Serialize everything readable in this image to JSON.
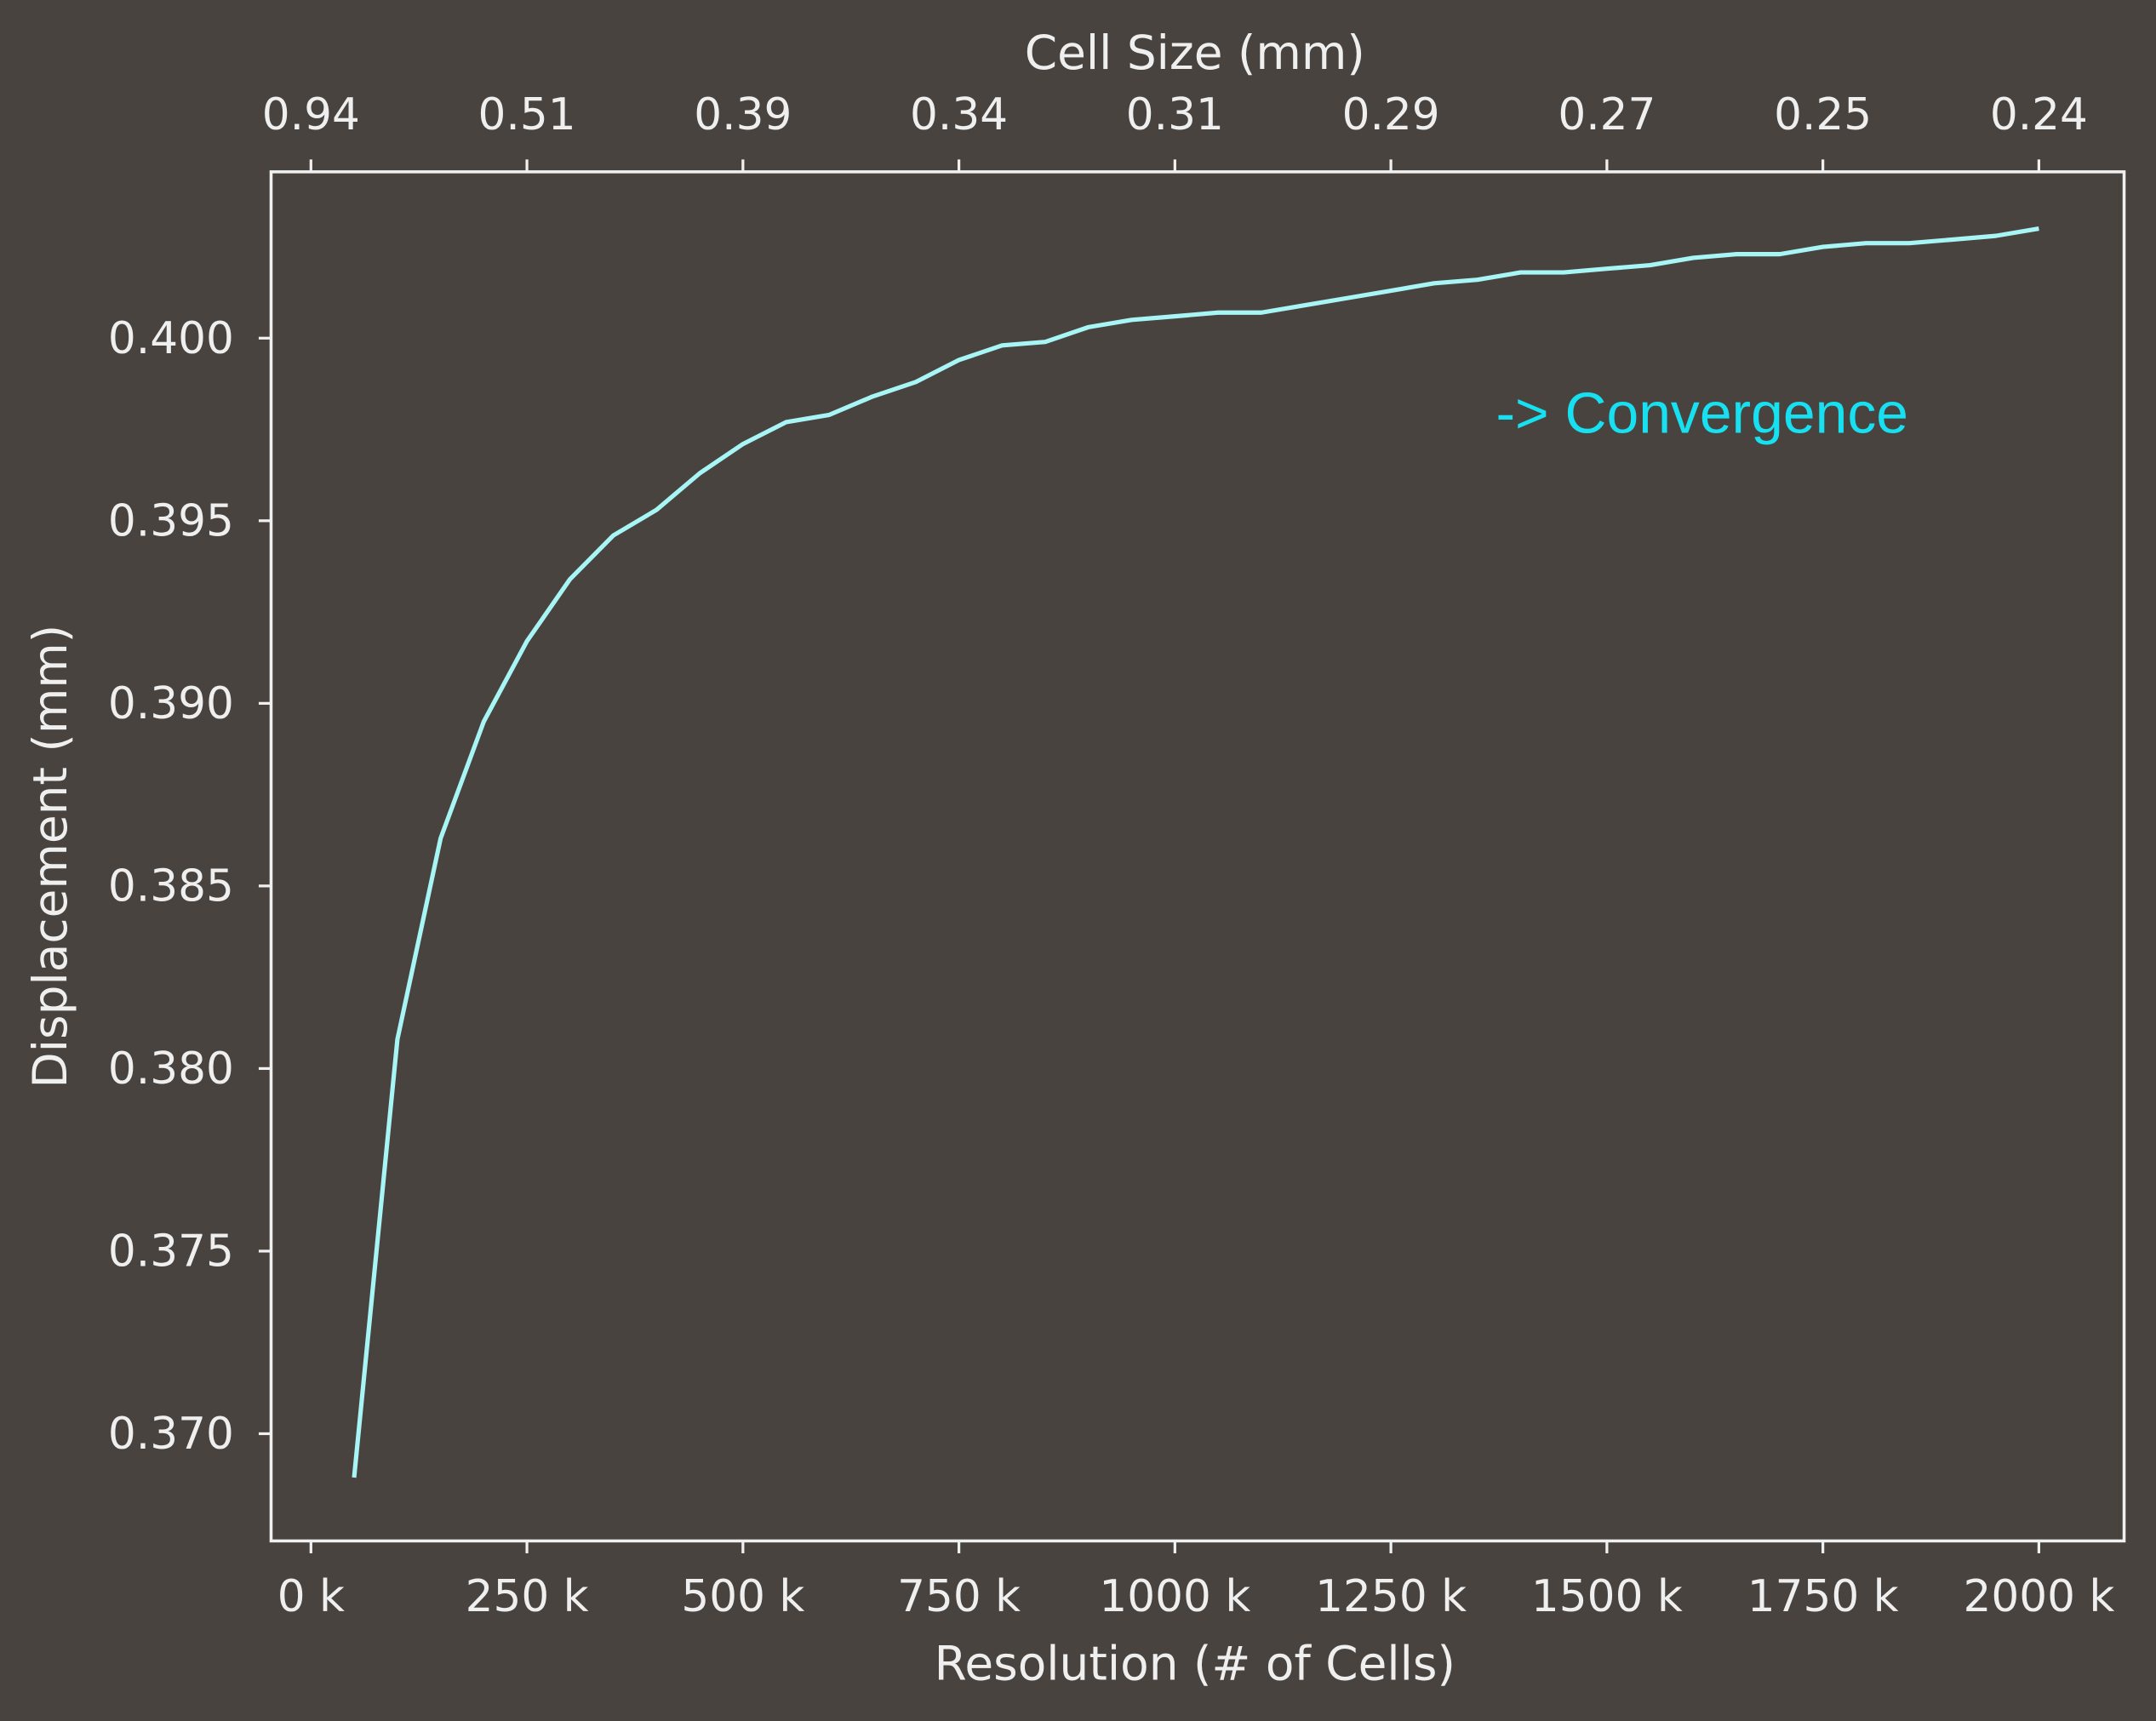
{
  "chart_data": {
    "type": "line",
    "title": "",
    "xlabel": "Resolution (# of Cells)",
    "ylabel": "Displacement (mm)",
    "top_xlabel": "Cell Size (mm)",
    "xlim": [
      -15,
      2100
    ],
    "ylim": [
      0.3676,
      0.4045
    ],
    "grid": false,
    "legend": null,
    "x_ticks": [
      0,
      250,
      500,
      750,
      1000,
      1250,
      1500,
      1750,
      2000
    ],
    "x_tick_labels": [
      "0 k",
      "250 k",
      "500 k",
      "750 k",
      "1000 k",
      "1250 k",
      "1500 k",
      "1750 k",
      "2000 k"
    ],
    "top_x_tick_labels": [
      "0.94",
      "0.51",
      "0.39",
      "0.34",
      "0.31",
      "0.29",
      "0.27",
      "0.25",
      "0.24"
    ],
    "y_ticks": [
      0.37,
      0.375,
      0.38,
      0.385,
      0.39,
      0.395,
      0.4
    ],
    "y_tick_labels": [
      "0.370",
      "0.375",
      "0.380",
      "0.385",
      "0.390",
      "0.395",
      "0.400"
    ],
    "annotation": "-> Convergence",
    "series": [
      {
        "name": "Displacement",
        "color": "#a8f5f5",
        "x": [
          50,
          100,
          150,
          200,
          250,
          300,
          350,
          400,
          450,
          500,
          550,
          600,
          650,
          700,
          750,
          800,
          850,
          900,
          950,
          1000,
          1050,
          1100,
          1150,
          1200,
          1250,
          1300,
          1350,
          1400,
          1450,
          1500,
          1550,
          1600,
          1650,
          1700,
          1750,
          1800,
          1850,
          1900,
          1950,
          2000
        ],
        "values": [
          0.3688,
          0.3808,
          0.3863,
          0.3895,
          0.3917,
          0.3934,
          0.3946,
          0.3953,
          0.3963,
          0.3971,
          0.3977,
          0.3979,
          0.3984,
          0.3988,
          0.3994,
          0.3998,
          0.3999,
          0.4003,
          0.4005,
          0.4006,
          0.4007,
          0.4007,
          0.4009,
          0.4011,
          0.4013,
          0.4015,
          0.4016,
          0.4018,
          0.4018,
          0.4019,
          0.402,
          0.4022,
          0.4023,
          0.4023,
          0.4025,
          0.4026,
          0.4026,
          0.4027,
          0.4028,
          0.403
        ]
      }
    ]
  },
  "colors": {
    "background": "#48433f",
    "axes": "#f0f0f0",
    "line": "#a8f5f5",
    "annotation": "#17e0f0"
  }
}
